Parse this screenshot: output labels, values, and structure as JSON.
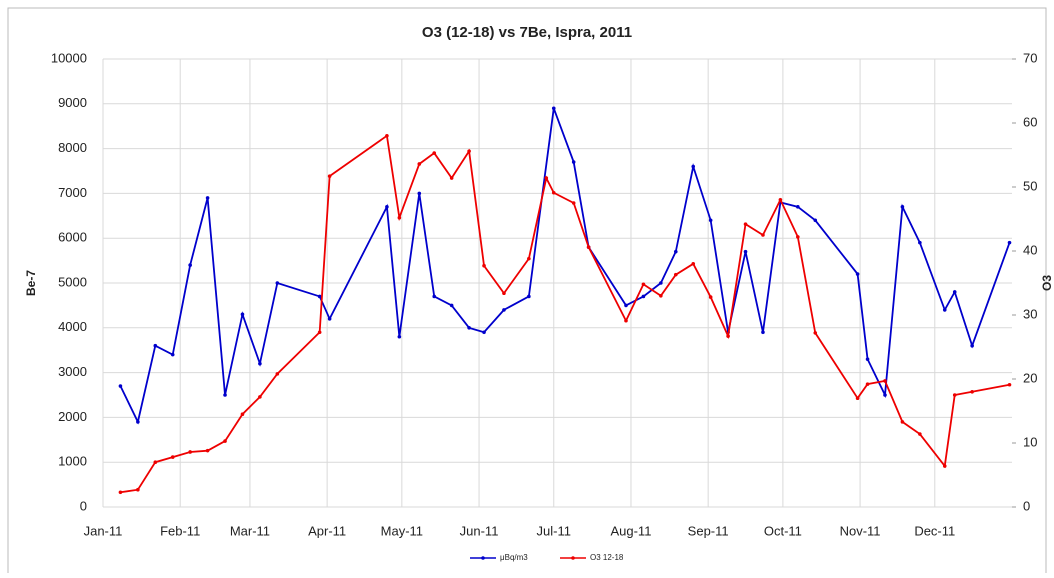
{
  "chart_data": {
    "type": "line",
    "title": "O3 (12-18) vs 7Be, Ispra, 2011",
    "y_label": "Be-7",
    "y2_label": "O3",
    "xlim": [
      0,
      365
    ],
    "xticks": [
      {
        "value": 0,
        "label": "Jan-11"
      },
      {
        "value": 31,
        "label": "Feb-11"
      },
      {
        "value": 59,
        "label": "Mar-11"
      },
      {
        "value": 90,
        "label": "Apr-11"
      },
      {
        "value": 120,
        "label": "May-11"
      },
      {
        "value": 151,
        "label": "Jun-11"
      },
      {
        "value": 181,
        "label": "Jul-11"
      },
      {
        "value": 212,
        "label": "Aug-11"
      },
      {
        "value": 243,
        "label": "Sep-11"
      },
      {
        "value": 273,
        "label": "Oct-11"
      },
      {
        "value": 304,
        "label": "Nov-11"
      },
      {
        "value": 334,
        "label": "Dec-11"
      }
    ],
    "ylim": [
      0,
      10000
    ],
    "yticks": [
      0,
      1000,
      2000,
      3000,
      4000,
      5000,
      6000,
      7000,
      8000,
      9000,
      10000
    ],
    "y2lim": [
      0,
      70
    ],
    "y2ticks": [
      0,
      10,
      20,
      30,
      40,
      50,
      60,
      70
    ],
    "grid": true,
    "legend": "bottom",
    "series": [
      {
        "name": "μBq/m3",
        "color": "#0000cc",
        "x": [
          7,
          14,
          21,
          28,
          35,
          42,
          49,
          56,
          63,
          70,
          87,
          91,
          114,
          119,
          127,
          133,
          140,
          147,
          153,
          161,
          171,
          181,
          189,
          195,
          210,
          217,
          224,
          230,
          237,
          244,
          251,
          258,
          265,
          272,
          279,
          286,
          303,
          307,
          314,
          321,
          328,
          338,
          342,
          349,
          364
        ],
        "values": [
          2700,
          1900,
          3600,
          3400,
          5400,
          6900,
          2500,
          4300,
          3200,
          5000,
          4700,
          4200,
          6700,
          3800,
          7000,
          4700,
          4500,
          4000,
          3900,
          4400,
          4700,
          8900,
          7700,
          5800,
          4500,
          4700,
          5000,
          5700,
          7600,
          6400,
          3900,
          5700,
          3900,
          6800,
          6700,
          6400,
          5200,
          3300,
          2500,
          6700,
          5900,
          4400,
          4800,
          3600,
          5900
        ]
      },
      {
        "name": "O3 12-18",
        "color": "#ee0000",
        "axis": "y2",
        "x": [
          7,
          14,
          21,
          28,
          35,
          42,
          49,
          56,
          63,
          70,
          87,
          91,
          114,
          119,
          127,
          133,
          140,
          147,
          153,
          161,
          171,
          178,
          181,
          189,
          195,
          210,
          217,
          224,
          230,
          237,
          244,
          251,
          258,
          265,
          272,
          279,
          286,
          303,
          307,
          314,
          321,
          328,
          338,
          342,
          349,
          364
        ],
        "values": [
          2.3,
          2.7,
          7.0,
          7.8,
          8.6,
          8.8,
          10.3,
          14.5,
          17.2,
          20.8,
          27.3,
          51.7,
          58.0,
          45.2,
          53.6,
          55.3,
          51.4,
          55.6,
          37.7,
          33.4,
          38.8,
          51.4,
          49.1,
          47.5,
          40.6,
          29.1,
          34.8,
          33.0,
          36.3,
          38.0,
          32.8,
          26.7,
          44.2,
          42.5,
          48.0,
          42.2,
          27.2,
          17.0,
          19.2,
          19.7,
          13.3,
          11.4,
          6.4,
          17.5,
          18.0,
          19.1
        ]
      }
    ]
  }
}
